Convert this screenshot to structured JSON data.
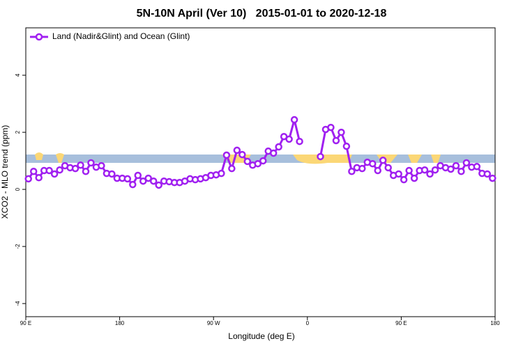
{
  "chart_data": {
    "type": "line",
    "title": "5N-10N April (Ver 10)   2015-01-01 to 2020-12-18",
    "x_label": "Longitude (deg E)",
    "y_label": "XCO2 - MLO trend (ppm)",
    "legend_position": "top-left",
    "x": [
      92.5,
      97.5,
      102.5,
      107.5,
      112.5,
      117.5,
      122.5,
      127.5,
      132.5,
      137.5,
      142.5,
      147.5,
      152.5,
      157.5,
      162.5,
      167.5,
      172.5,
      177.5,
      182.5,
      187.5,
      192.5,
      197.5,
      202.5,
      207.5,
      212.5,
      217.5,
      222.5,
      227.5,
      232.5,
      237.5,
      242.5,
      247.5,
      252.5,
      257.5,
      262.5,
      267.5,
      272.5,
      277.5,
      282.5,
      287.5,
      292.5,
      297.5,
      302.5,
      307.5,
      312.5,
      317.5,
      322.5,
      327.5,
      332.5,
      337.5,
      342.5,
      347.5,
      352.5,
      357.5,
      362.5,
      367.5,
      372.5,
      377.5,
      382.5,
      387.5,
      392.5,
      397.5,
      402.5,
      407.5,
      412.5,
      417.5,
      422.5,
      427.5,
      432.5,
      437.5,
      442.5,
      447.5,
      452.5,
      457.5,
      462.5,
      467.5,
      472.5,
      477.5,
      482.5,
      487.5,
      492.5,
      497.5,
      502.5,
      507.5,
      512.5,
      517.5,
      522.5,
      527.5,
      532.5,
      537.5
    ],
    "series": [
      {
        "name": "Land (Nadir&Glint) and Ocean (Glint)",
        "color": "#a020f0",
        "values": [
          0.37,
          0.63,
          0.41,
          0.66,
          0.66,
          0.54,
          0.68,
          0.83,
          0.76,
          0.73,
          0.85,
          0.63,
          0.93,
          0.78,
          0.83,
          0.56,
          0.54,
          0.39,
          0.39,
          0.37,
          0.17,
          0.49,
          0.29,
          0.39,
          0.29,
          0.15,
          0.29,
          0.27,
          0.24,
          0.24,
          0.29,
          0.37,
          0.34,
          0.37,
          0.41,
          0.49,
          0.51,
          0.56,
          1.2,
          0.73,
          1.37,
          1.22,
          0.98,
          0.85,
          0.9,
          1.0,
          1.34,
          1.27,
          1.49,
          1.85,
          1.76,
          2.44,
          1.68,
          null,
          null,
          null,
          1.15,
          2.1,
          2.17,
          1.71,
          2.0,
          1.51,
          0.63,
          0.76,
          0.73,
          0.95,
          0.9,
          0.66,
          1.02,
          0.76,
          0.49,
          0.54,
          0.34,
          0.66,
          0.39,
          0.66,
          0.68,
          0.54,
          0.68,
          0.83,
          0.76,
          0.71,
          0.83,
          0.63,
          0.93,
          0.78,
          0.8,
          0.56,
          0.54,
          0.39
        ]
      }
    ],
    "xlim": [
      90,
      540
    ],
    "xticks": [
      {
        "value": 90,
        "label": "90 E"
      },
      180,
      {
        "value": 270,
        "label": "90 W"
      },
      {
        "value": 360,
        "label": "0"
      },
      {
        "value": 450,
        "label": "90 E"
      },
      {
        "value": 540,
        "label": "180"
      }
    ],
    "ylim": [
      -4.46,
      5.66
    ],
    "yticks": [
      -4,
      -2,
      0,
      2,
      4
    ]
  }
}
